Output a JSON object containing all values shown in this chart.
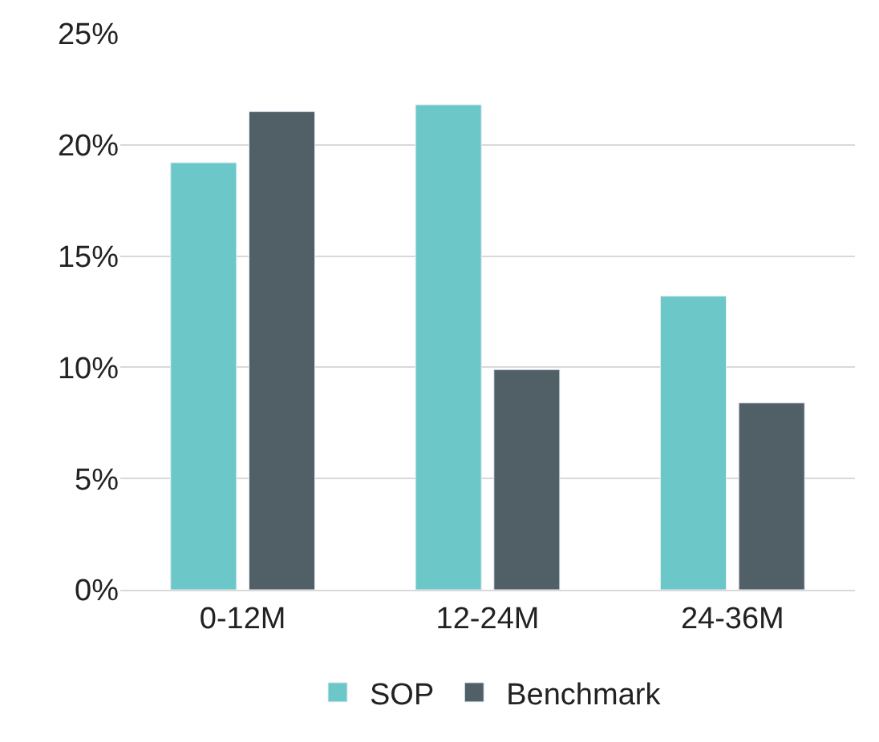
{
  "chart_data": {
    "type": "bar",
    "categories": [
      "0-12M",
      "12-24M",
      "24-36M"
    ],
    "series": [
      {
        "name": "SOP",
        "color": "#6cc8c8",
        "values": [
          19.2,
          21.8,
          13.2
        ]
      },
      {
        "name": "Benchmark",
        "color": "#515f67",
        "values": [
          21.5,
          9.9,
          8.4
        ]
      }
    ],
    "ylim": [
      0,
      25
    ],
    "yticks": [
      {
        "value": 0,
        "label": "0%"
      },
      {
        "value": 5,
        "label": "5%"
      },
      {
        "value": 10,
        "label": "10%"
      },
      {
        "value": 15,
        "label": "15%"
      },
      {
        "value": 20,
        "label": "20%"
      },
      {
        "value": 25,
        "label": "25%"
      }
    ],
    "grid": "y",
    "legend": "bottom"
  }
}
